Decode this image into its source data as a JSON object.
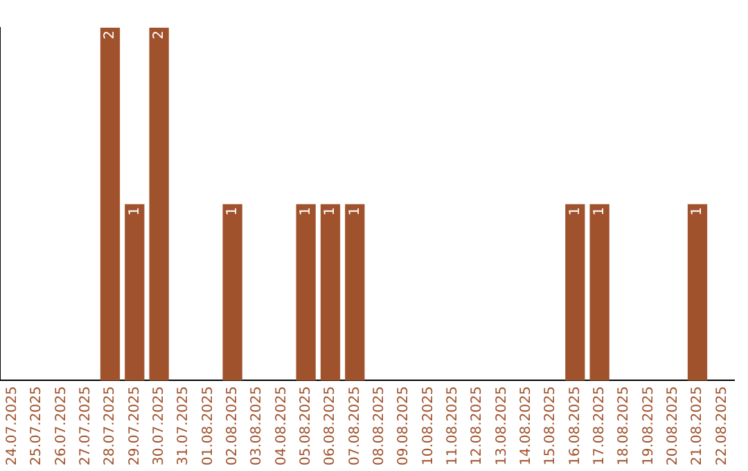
{
  "chart_data": {
    "type": "bar",
    "categories": [
      "24.07.2025",
      "25.07.2025",
      "26.07.2025",
      "27.07.2025",
      "28.07.2025",
      "29.07.2025",
      "30.07.2025",
      "31.07.2025",
      "01.08.2025",
      "02.08.2025",
      "03.08.2025",
      "04.08.2025",
      "05.08.2025",
      "06.08.2025",
      "07.08.2025",
      "08.08.2025",
      "09.08.2025",
      "10.08.2025",
      "11.08.2025",
      "12.08.2025",
      "13.08.2025",
      "14.08.2025",
      "15.08.2025",
      "16.08.2025",
      "17.08.2025",
      "18.08.2025",
      "19.08.2025",
      "20.08.2025",
      "21.08.2025",
      "22.08.2025"
    ],
    "values": [
      0,
      0,
      0,
      0,
      2,
      1,
      2,
      0,
      0,
      1,
      0,
      0,
      1,
      1,
      1,
      0,
      0,
      0,
      0,
      0,
      0,
      0,
      0,
      1,
      1,
      0,
      0,
      0,
      1,
      0
    ],
    "value_labels": [
      null,
      null,
      null,
      null,
      "2",
      "1",
      "2",
      null,
      null,
      "1",
      null,
      null,
      "1",
      "1",
      "1",
      null,
      null,
      null,
      null,
      null,
      null,
      null,
      null,
      "1",
      "1",
      null,
      null,
      null,
      "1",
      null
    ],
    "color": "#a0522d",
    "grid": false,
    "legend": false,
    "tick_labels": "x"
  }
}
